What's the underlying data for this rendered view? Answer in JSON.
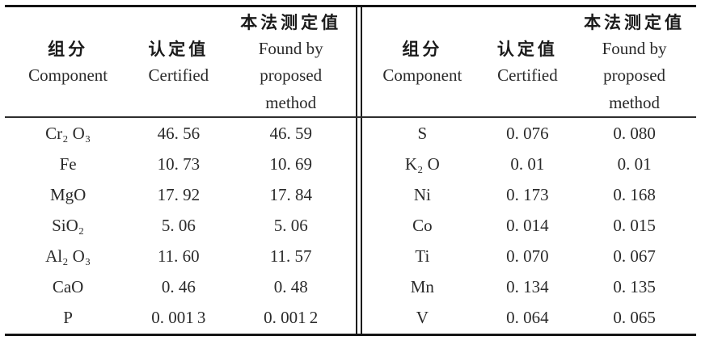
{
  "colors": {
    "background": "#ffffff",
    "text": "#2a2a2a",
    "rule": "#141414"
  },
  "table": {
    "columns": {
      "component_zh": "组分",
      "component_en": "Component",
      "certified_zh": "认定值",
      "certified_en": "Certified",
      "found_zh": "本法测定值",
      "found_en_line1": "Found by",
      "found_en_line2": "proposed",
      "found_en_line3": "method"
    },
    "left_rows": [
      {
        "component": "Cr₂ O₃",
        "certified": "46. 56",
        "found": "46. 59"
      },
      {
        "component": "Fe",
        "certified": "10. 73",
        "found": "10. 69"
      },
      {
        "component": "MgO",
        "certified": "17. 92",
        "found": "17. 84"
      },
      {
        "component": "SiO₂",
        "certified": "5. 06",
        "found": "5. 06"
      },
      {
        "component": "Al₂ O₃",
        "certified": "11. 60",
        "found": "11. 57"
      },
      {
        "component": "CaO",
        "certified": "0. 46",
        "found": "0. 48"
      },
      {
        "component": "P",
        "certified": "0. 001 3",
        "found": "0. 001 2"
      }
    ],
    "right_rows": [
      {
        "component": "S",
        "certified": "0. 076",
        "found": "0. 080"
      },
      {
        "component": "K₂ O",
        "certified": "0. 01",
        "found": "0. 01"
      },
      {
        "component": "Ni",
        "certified": "0. 173",
        "found": "0. 168"
      },
      {
        "component": "Co",
        "certified": "0. 014",
        "found": "0. 015"
      },
      {
        "component": "Ti",
        "certified": "0. 070",
        "found": "0. 067"
      },
      {
        "component": "Mn",
        "certified": "0. 134",
        "found": "0. 135"
      },
      {
        "component": "V",
        "certified": "0. 064",
        "found": "0. 065"
      }
    ]
  }
}
